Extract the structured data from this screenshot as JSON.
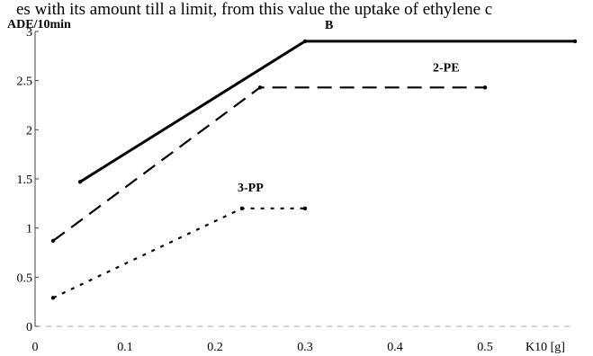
{
  "caption": "es with its amount till a limit, from this value the uptake of ethylene c",
  "chart_data": {
    "type": "line",
    "title": "",
    "xlabel": "K10 [g]",
    "ylabel": "ADE/10min",
    "xlim": [
      0,
      0.6
    ],
    "ylim": [
      0,
      3
    ],
    "x_ticks": [
      "0",
      "0.1",
      "0.2",
      "0.3",
      "0.4",
      "0.5"
    ],
    "y_ticks": [
      "0",
      "0.5",
      "1",
      "1.5",
      "2",
      "2.5",
      "3"
    ],
    "grid": false,
    "legend": "none",
    "series": [
      {
        "name": "B",
        "style": "solid",
        "color": "#000000",
        "points": [
          [
            0.05,
            1.47
          ],
          [
            0.3,
            2.9
          ],
          [
            0.6,
            2.9
          ]
        ]
      },
      {
        "name": "2-PE",
        "style": "dashed",
        "color": "#000000",
        "points": [
          [
            0.02,
            0.87
          ],
          [
            0.25,
            2.43
          ],
          [
            0.5,
            2.43
          ]
        ]
      },
      {
        "name": "3-PP",
        "style": "dotted",
        "color": "#000000",
        "points": [
          [
            0.02,
            0.29
          ],
          [
            0.23,
            1.2
          ],
          [
            0.3,
            1.2
          ]
        ]
      }
    ]
  }
}
